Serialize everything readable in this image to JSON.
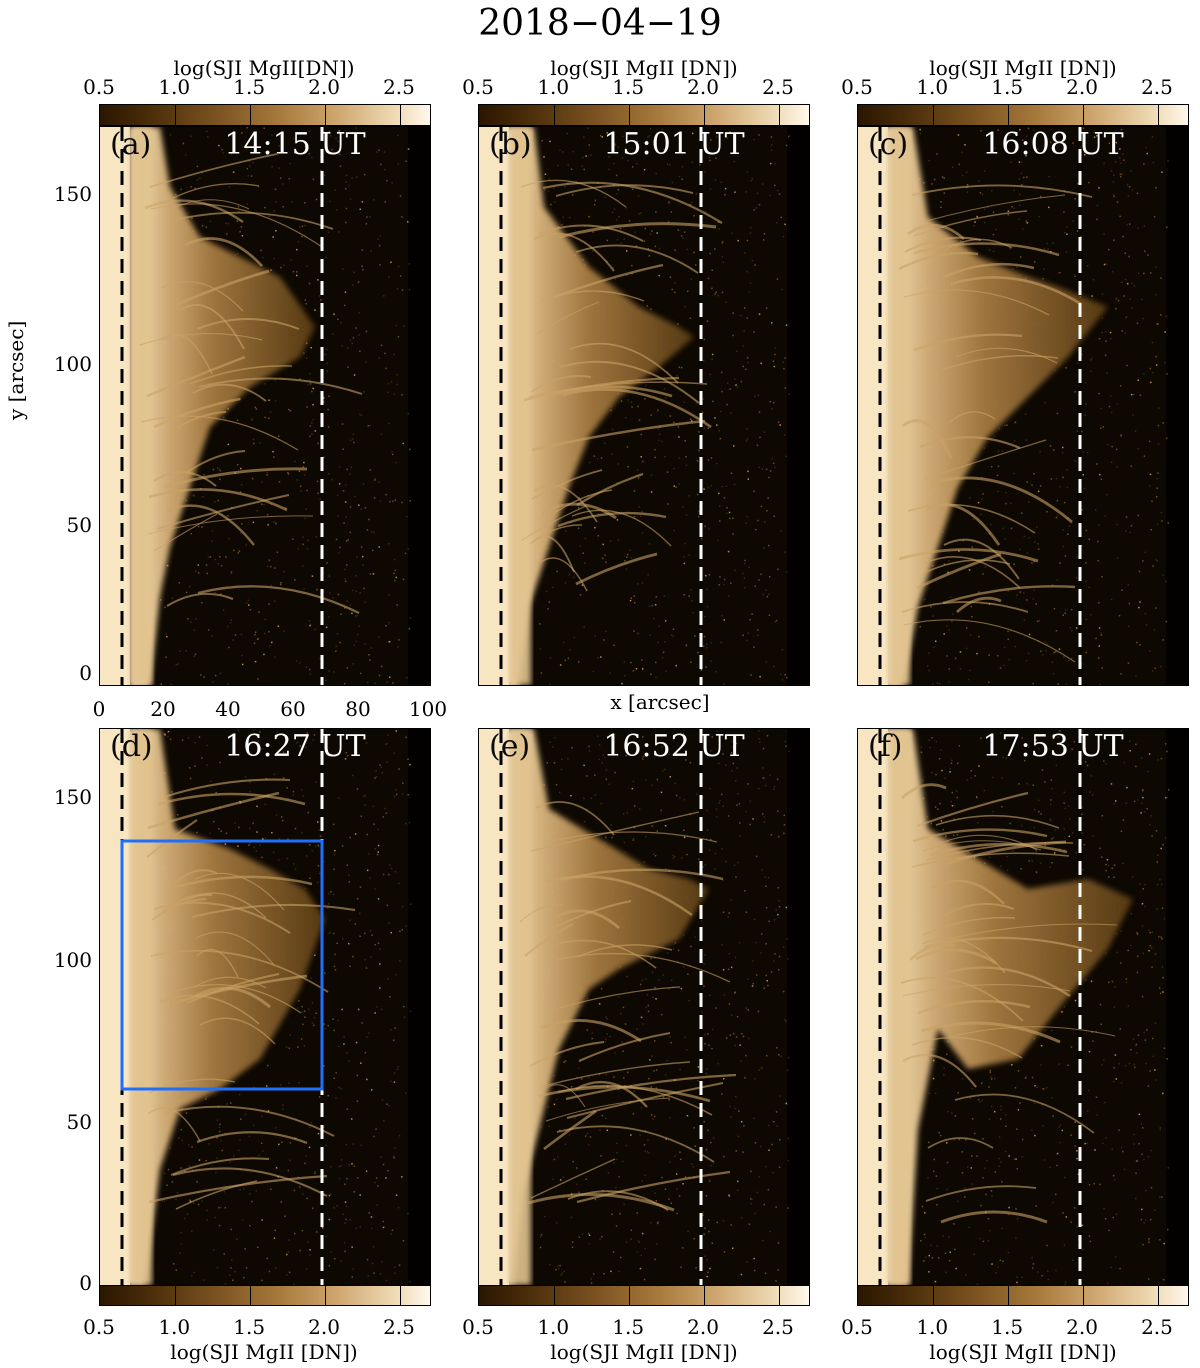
{
  "title": "2018−04−19",
  "colorbars": {
    "top": [
      {
        "label": "log(SJI MgII[DN])",
        "ticks": [
          "0.5",
          "1.0",
          "1.5",
          "2.0",
          "2.5"
        ]
      },
      {
        "label": "log(SJI MgII [DN])",
        "ticks": [
          "0.5",
          "1.0",
          "1.5",
          "2.0",
          "2.5"
        ]
      },
      {
        "label": "log(SJI MgII [DN])",
        "ticks": [
          "0.5",
          "1.0",
          "1.5",
          "2.0",
          "2.5"
        ]
      }
    ],
    "bottom": [
      {
        "label": "log(SJI MgII [DN])",
        "ticks": [
          "0.5",
          "1.0",
          "1.5",
          "2.0",
          "2.5"
        ]
      },
      {
        "label": "log(SJI MgII [DN])",
        "ticks": [
          "0.5",
          "1.0",
          "1.5",
          "2.0",
          "2.5"
        ]
      },
      {
        "label": "log(SJI MgII [DN])",
        "ticks": [
          "0.5",
          "1.0",
          "1.5",
          "2.0",
          "2.5"
        ]
      }
    ]
  },
  "axes": {
    "ylabel": "y [arcsec]",
    "xlabel": "x [arcsec]",
    "yticks": [
      "150",
      "100",
      "50",
      "0"
    ],
    "xticks": [
      "0",
      "20",
      "40",
      "60",
      "80",
      "100"
    ]
  },
  "panels": [
    {
      "label": "(a)",
      "time": "14:15 UT"
    },
    {
      "label": "(b)",
      "time": "15:01 UT"
    },
    {
      "label": "(c)",
      "time": "16:08 UT"
    },
    {
      "label": "(d)",
      "time": "16:27 UT"
    },
    {
      "label": "(e)",
      "time": "16:52 UT"
    },
    {
      "label": "(f)",
      "time": "17:53 UT"
    }
  ],
  "colors": {
    "box": "#1f6fff",
    "dashed_left": "#000000",
    "dashed_right": "#ffffff",
    "background": "#0d0802",
    "limb": "#e8cfa0"
  }
}
